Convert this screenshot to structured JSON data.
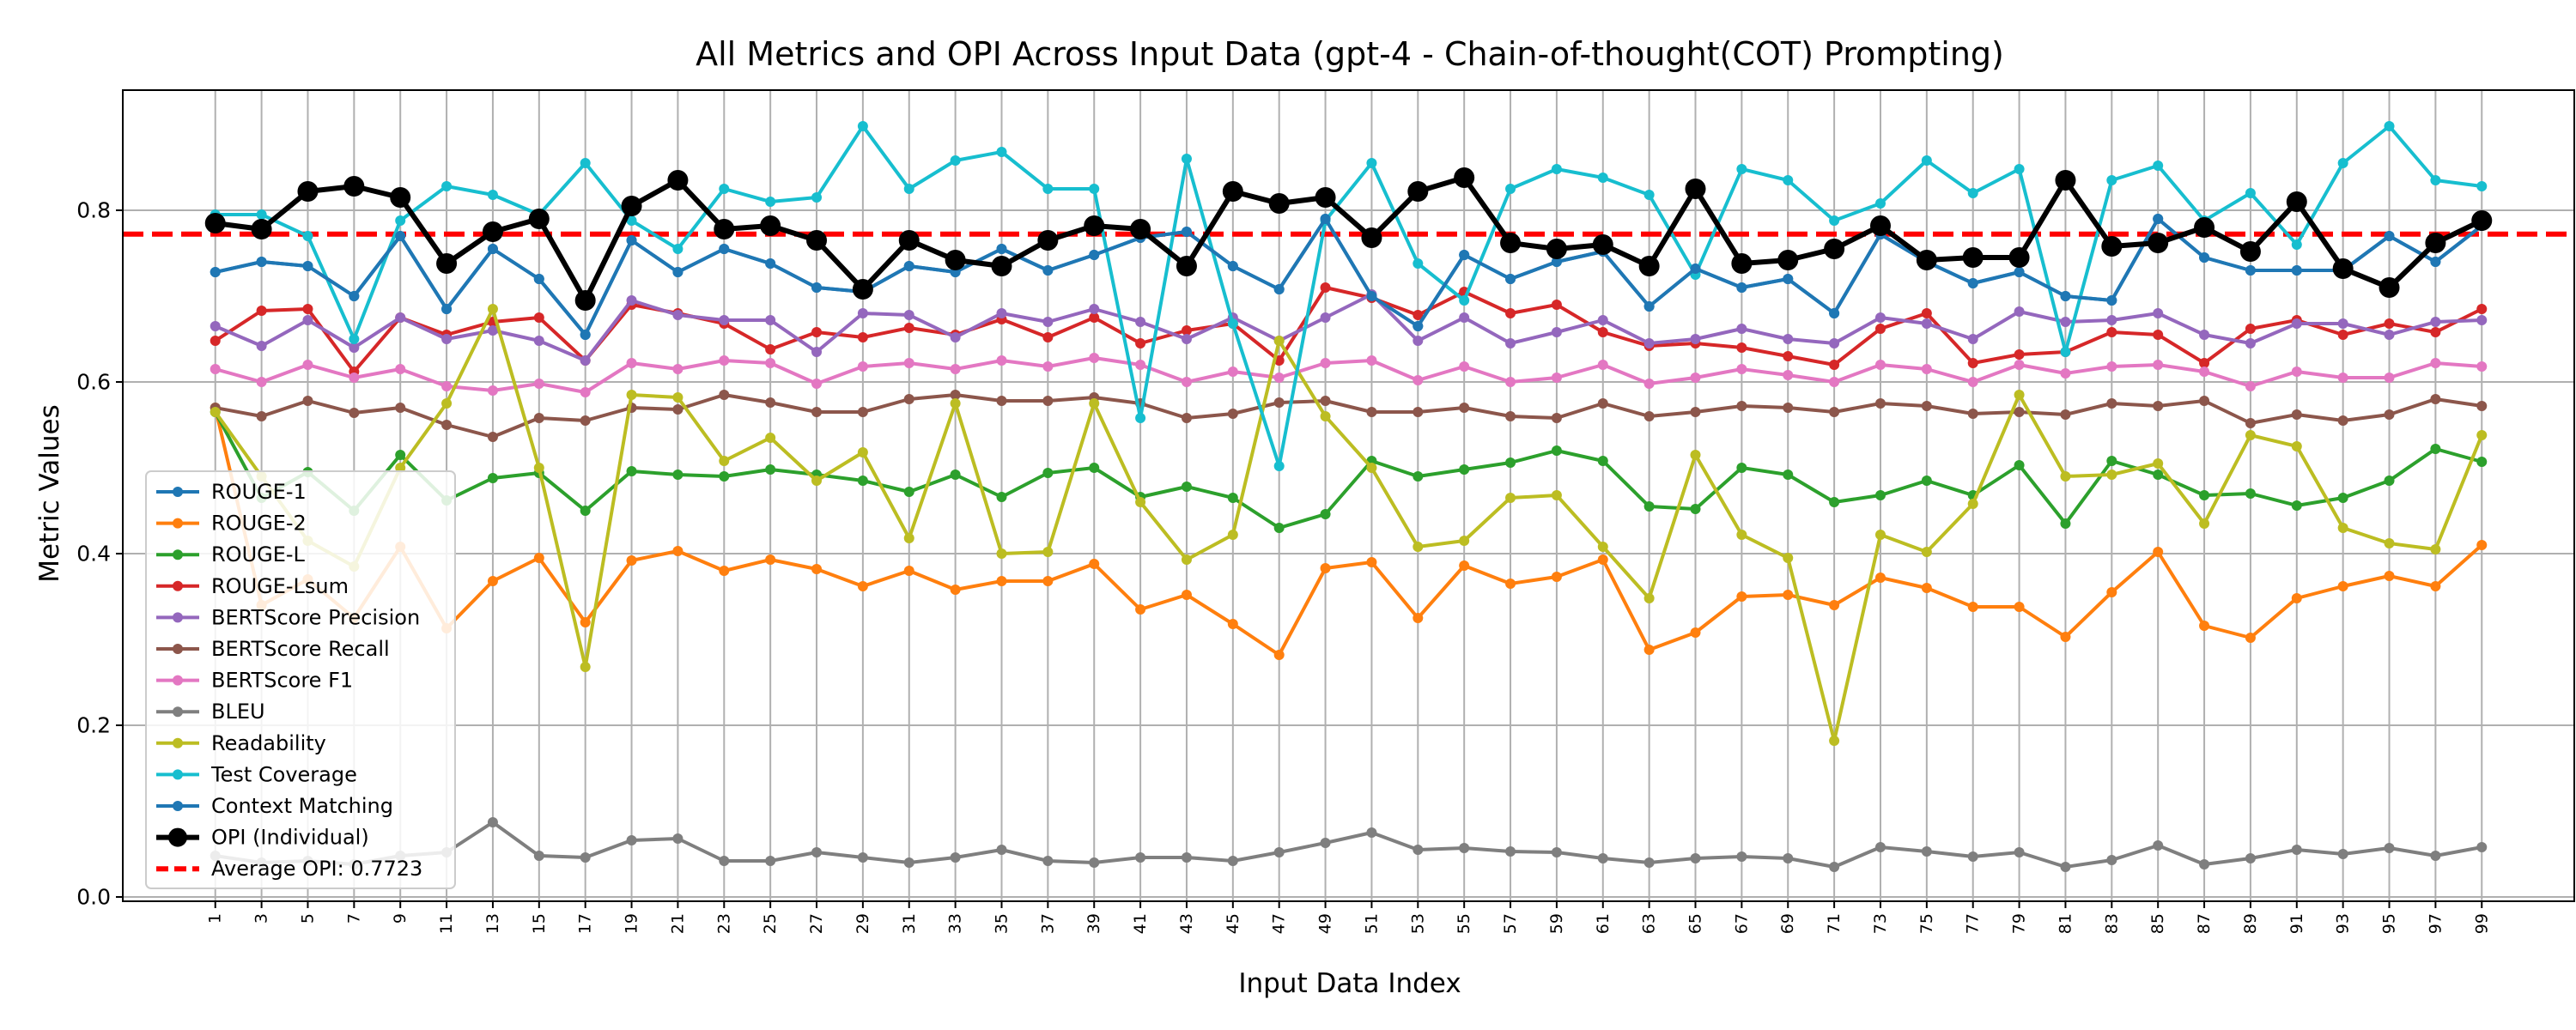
{
  "chart_data": {
    "type": "line",
    "title": "All Metrics and OPI Across Input Data (gpt-4 - Chain-of-thought(COT) Prompting)",
    "xlabel": "Input Data Index",
    "ylabel": "Metric Values",
    "x": [
      1,
      3,
      5,
      7,
      9,
      11,
      13,
      15,
      17,
      19,
      21,
      23,
      25,
      27,
      29,
      31,
      33,
      35,
      37,
      39,
      41,
      43,
      45,
      47,
      49,
      51,
      53,
      55,
      57,
      59,
      61,
      63,
      65,
      67,
      69,
      71,
      73,
      75,
      77,
      79,
      81,
      83,
      85,
      87,
      89,
      91,
      93,
      95,
      97,
      99
    ],
    "xticks": [
      "1",
      "3",
      "5",
      "7",
      "9",
      "11",
      "13",
      "15",
      "17",
      "19",
      "21",
      "23",
      "25",
      "27",
      "29",
      "31",
      "33",
      "35",
      "37",
      "39",
      "41",
      "43",
      "45",
      "47",
      "49",
      "51",
      "53",
      "55",
      "57",
      "59",
      "61",
      "63",
      "65",
      "67",
      "69",
      "71",
      "73",
      "75",
      "77",
      "79",
      "81",
      "83",
      "85",
      "87",
      "89",
      "91",
      "93",
      "95",
      "97",
      "99"
    ],
    "xlim": [
      -3,
      103
    ],
    "ylim": [
      -0.005,
      0.94
    ],
    "yticks": [
      0.0,
      0.2,
      0.4,
      0.6,
      0.8
    ],
    "ytick_labels": [
      "0.0",
      "0.2",
      "0.4",
      "0.6",
      "0.8"
    ],
    "grid": true,
    "legend_position": "lower-left",
    "series": [
      {
        "name": "ROUGE-1",
        "color": "#1f77b4",
        "values": [
          0.728,
          0.74,
          0.735,
          0.7,
          0.77,
          0.685,
          0.755,
          0.72,
          0.655,
          0.765,
          0.728,
          0.755,
          0.738,
          0.71,
          0.705,
          0.735,
          0.728,
          0.755,
          0.73,
          0.748,
          0.768,
          0.775,
          0.735,
          0.708,
          0.79,
          0.7,
          0.665,
          0.748,
          0.72,
          0.74,
          0.752,
          0.688,
          0.732,
          0.71,
          0.72,
          0.68,
          0.772,
          0.74,
          0.715,
          0.728,
          0.7,
          0.695,
          0.79,
          0.745,
          0.73,
          0.73,
          0.73,
          0.77,
          0.74,
          0.782
        ]
      },
      {
        "name": "ROUGE-2",
        "color": "#ff7f0e",
        "values": [
          0.57,
          0.34,
          0.37,
          0.325,
          0.408,
          0.313,
          0.368,
          0.395,
          0.32,
          0.392,
          0.403,
          0.38,
          0.393,
          0.382,
          0.362,
          0.38,
          0.358,
          0.368,
          0.368,
          0.388,
          0.335,
          0.352,
          0.318,
          0.282,
          0.383,
          0.39,
          0.325,
          0.386,
          0.365,
          0.373,
          0.393,
          0.288,
          0.308,
          0.35,
          0.352,
          0.34,
          0.372,
          0.36,
          0.338,
          0.338,
          0.303,
          0.355,
          0.402,
          0.316,
          0.302,
          0.348,
          0.362,
          0.374,
          0.362,
          0.41
        ]
      },
      {
        "name": "ROUGE-L",
        "color": "#2ca02c",
        "values": [
          0.565,
          0.465,
          0.495,
          0.45,
          0.515,
          0.462,
          0.488,
          0.494,
          0.45,
          0.496,
          0.492,
          0.49,
          0.498,
          0.492,
          0.485,
          0.472,
          0.492,
          0.466,
          0.494,
          0.5,
          0.466,
          0.478,
          0.465,
          0.43,
          0.446,
          0.508,
          0.49,
          0.498,
          0.506,
          0.52,
          0.508,
          0.455,
          0.452,
          0.5,
          0.492,
          0.46,
          0.468,
          0.485,
          0.468,
          0.503,
          0.435,
          0.508,
          0.492,
          0.468,
          0.47,
          0.456,
          0.465,
          0.485,
          0.522,
          0.507
        ]
      },
      {
        "name": "ROUGE-Lsum",
        "color": "#d62728",
        "values": [
          0.648,
          0.683,
          0.685,
          0.612,
          0.675,
          0.655,
          0.67,
          0.675,
          0.625,
          0.69,
          0.68,
          0.668,
          0.638,
          0.658,
          0.652,
          0.663,
          0.655,
          0.673,
          0.652,
          0.675,
          0.645,
          0.66,
          0.668,
          0.625,
          0.71,
          0.698,
          0.678,
          0.705,
          0.68,
          0.69,
          0.658,
          0.642,
          0.645,
          0.64,
          0.63,
          0.62,
          0.662,
          0.68,
          0.622,
          0.632,
          0.635,
          0.658,
          0.655,
          0.622,
          0.662,
          0.672,
          0.655,
          0.668,
          0.658,
          0.685
        ]
      },
      {
        "name": "BERTScore Precision",
        "color": "#9467bd",
        "values": [
          0.665,
          0.642,
          0.672,
          0.64,
          0.675,
          0.65,
          0.66,
          0.648,
          0.625,
          0.695,
          0.678,
          0.672,
          0.672,
          0.635,
          0.68,
          0.678,
          0.652,
          0.68,
          0.67,
          0.685,
          0.67,
          0.65,
          0.675,
          0.648,
          0.675,
          0.702,
          0.648,
          0.675,
          0.645,
          0.658,
          0.672,
          0.645,
          0.65,
          0.662,
          0.65,
          0.645,
          0.675,
          0.668,
          0.65,
          0.682,
          0.67,
          0.672,
          0.68,
          0.655,
          0.645,
          0.668,
          0.668,
          0.655,
          0.67,
          0.672
        ]
      },
      {
        "name": "BERTScore Recall",
        "color": "#8c564b",
        "values": [
          0.57,
          0.56,
          0.578,
          0.564,
          0.57,
          0.55,
          0.536,
          0.558,
          0.555,
          0.57,
          0.568,
          0.585,
          0.576,
          0.565,
          0.565,
          0.58,
          0.585,
          0.578,
          0.578,
          0.582,
          0.575,
          0.558,
          0.563,
          0.576,
          0.578,
          0.565,
          0.565,
          0.57,
          0.56,
          0.558,
          0.575,
          0.56,
          0.565,
          0.572,
          0.57,
          0.565,
          0.575,
          0.572,
          0.563,
          0.565,
          0.562,
          0.575,
          0.572,
          0.578,
          0.552,
          0.562,
          0.555,
          0.562,
          0.58,
          0.572
        ]
      },
      {
        "name": "BERTScore F1",
        "color": "#e377c2",
        "values": [
          0.615,
          0.6,
          0.62,
          0.605,
          0.615,
          0.595,
          0.59,
          0.598,
          0.588,
          0.622,
          0.615,
          0.625,
          0.622,
          0.598,
          0.618,
          0.622,
          0.615,
          0.625,
          0.618,
          0.628,
          0.62,
          0.6,
          0.612,
          0.605,
          0.622,
          0.625,
          0.602,
          0.618,
          0.6,
          0.605,
          0.62,
          0.598,
          0.605,
          0.615,
          0.608,
          0.6,
          0.62,
          0.615,
          0.6,
          0.62,
          0.61,
          0.618,
          0.62,
          0.612,
          0.595,
          0.612,
          0.605,
          0.605,
          0.622,
          0.618
        ]
      },
      {
        "name": "BLEU",
        "color": "#7f7f7f",
        "values": [
          0.048,
          0.04,
          0.042,
          0.038,
          0.048,
          0.052,
          0.087,
          0.048,
          0.046,
          0.066,
          0.068,
          0.042,
          0.042,
          0.052,
          0.046,
          0.04,
          0.046,
          0.055,
          0.042,
          0.04,
          0.046,
          0.046,
          0.042,
          0.052,
          0.063,
          0.075,
          0.055,
          0.057,
          0.053,
          0.052,
          0.045,
          0.04,
          0.045,
          0.047,
          0.045,
          0.035,
          0.058,
          0.053,
          0.047,
          0.052,
          0.035,
          0.043,
          0.06,
          0.038,
          0.045,
          0.055,
          0.05,
          0.057,
          0.048,
          0.058
        ]
      },
      {
        "name": "Readability",
        "color": "#bcbd22",
        "values": [
          0.565,
          0.49,
          0.415,
          0.385,
          0.5,
          0.575,
          0.685,
          0.5,
          0.268,
          0.585,
          0.582,
          0.508,
          0.535,
          0.485,
          0.518,
          0.418,
          0.575,
          0.4,
          0.402,
          0.575,
          0.46,
          0.393,
          0.422,
          0.648,
          0.56,
          0.5,
          0.408,
          0.415,
          0.465,
          0.468,
          0.408,
          0.348,
          0.515,
          0.422,
          0.395,
          0.182,
          0.422,
          0.402,
          0.458,
          0.585,
          0.49,
          0.492,
          0.505,
          0.435,
          0.538,
          0.525,
          0.43,
          0.412,
          0.405,
          0.538
        ]
      },
      {
        "name": "Test Coverage",
        "color": "#17becf",
        "values": [
          0.795,
          0.795,
          0.77,
          0.65,
          0.788,
          0.828,
          0.818,
          0.795,
          0.855,
          0.788,
          0.755,
          0.825,
          0.81,
          0.815,
          0.898,
          0.825,
          0.858,
          0.868,
          0.825,
          0.825,
          0.558,
          0.86,
          0.668,
          0.502,
          0.788,
          0.855,
          0.738,
          0.695,
          0.825,
          0.848,
          0.838,
          0.818,
          0.725,
          0.848,
          0.835,
          0.788,
          0.808,
          0.858,
          0.82,
          0.848,
          0.635,
          0.835,
          0.852,
          0.788,
          0.82,
          0.76,
          0.855,
          0.898,
          0.835,
          0.828
        ]
      },
      {
        "name": "Context Matching",
        "color": "#1f77b4",
        "values": [
          0.728,
          0.74,
          0.735,
          0.7,
          0.77,
          0.685,
          0.755,
          0.72,
          0.655,
          0.765,
          0.728,
          0.755,
          0.738,
          0.71,
          0.705,
          0.735,
          0.728,
          0.755,
          0.73,
          0.748,
          0.768,
          0.775,
          0.735,
          0.708,
          0.79,
          0.7,
          0.665,
          0.748,
          0.72,
          0.74,
          0.752,
          0.688,
          0.732,
          0.71,
          0.72,
          0.68,
          0.772,
          0.74,
          0.715,
          0.728,
          0.7,
          0.695,
          0.79,
          0.745,
          0.73,
          0.73,
          0.73,
          0.77,
          0.74,
          0.782
        ]
      },
      {
        "name": "OPI (Individual)",
        "color": "#000000",
        "values": [
          0.785,
          0.778,
          0.822,
          0.828,
          0.815,
          0.738,
          0.775,
          0.79,
          0.695,
          0.805,
          0.835,
          0.778,
          0.782,
          0.765,
          0.708,
          0.765,
          0.742,
          0.735,
          0.765,
          0.782,
          0.778,
          0.735,
          0.822,
          0.808,
          0.815,
          0.768,
          0.822,
          0.838,
          0.762,
          0.755,
          0.76,
          0.735,
          0.825,
          0.738,
          0.742,
          0.755,
          0.782,
          0.742,
          0.745,
          0.745,
          0.835,
          0.758,
          0.762,
          0.78,
          0.752,
          0.81,
          0.732,
          0.71,
          0.762,
          0.788
        ]
      }
    ],
    "average_line": {
      "name": "Average OPI: 0.7723",
      "value": 0.7723,
      "color": "#ff0000"
    }
  }
}
